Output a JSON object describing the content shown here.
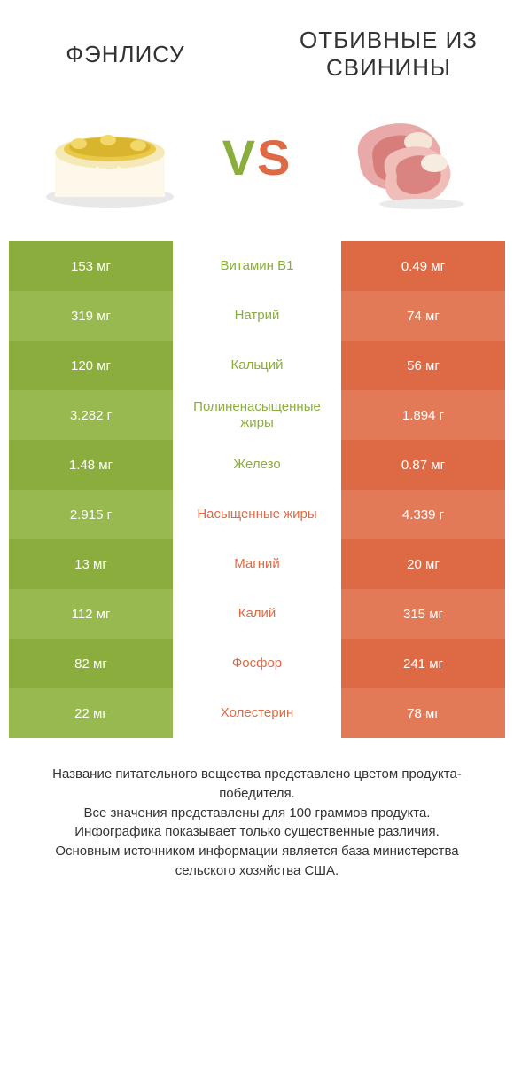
{
  "colors": {
    "green_a": "#8aad3e",
    "green_b": "#98b94f",
    "orange_a": "#de6a45",
    "orange_b": "#e27a58",
    "mid_green": "#8aad3e",
    "mid_orange": "#de6a45",
    "white": "#ffffff",
    "text": "#333333"
  },
  "header": {
    "left_title": "ФЭНЛИСУ",
    "right_title": "ОТБИВНЫЕ ИЗ СВИНИНЫ",
    "vs_v": "V",
    "vs_s": "S"
  },
  "rows": [
    {
      "left": "153 мг",
      "mid": "Витамин B1",
      "right": "0.49 мг",
      "winner": "left"
    },
    {
      "left": "319 мг",
      "mid": "Натрий",
      "right": "74 мг",
      "winner": "left"
    },
    {
      "left": "120 мг",
      "mid": "Кальций",
      "right": "56 мг",
      "winner": "left"
    },
    {
      "left": "3.282 г",
      "mid": "Полиненасыщенные жиры",
      "right": "1.894 г",
      "winner": "left"
    },
    {
      "left": "1.48 мг",
      "mid": "Железо",
      "right": "0.87 мг",
      "winner": "left"
    },
    {
      "left": "2.915 г",
      "mid": "Насыщенные жиры",
      "right": "4.339 г",
      "winner": "right"
    },
    {
      "left": "13 мг",
      "mid": "Магний",
      "right": "20 мг",
      "winner": "right"
    },
    {
      "left": "112 мг",
      "mid": "Калий",
      "right": "315 мг",
      "winner": "right"
    },
    {
      "left": "82 мг",
      "mid": "Фосфор",
      "right": "241 мг",
      "winner": "right"
    },
    {
      "left": "22 мг",
      "mid": "Холестерин",
      "right": "78 мг",
      "winner": "right"
    }
  ],
  "footer": {
    "line1": "Название питательного вещества представлено цветом продукта-победителя.",
    "line2": "Все значения представлены для 100 граммов продукта.",
    "line3": "Инфографика показывает только существенные различия.",
    "line4": "Основным источником информации является база министерства сельского хозяйства США."
  }
}
